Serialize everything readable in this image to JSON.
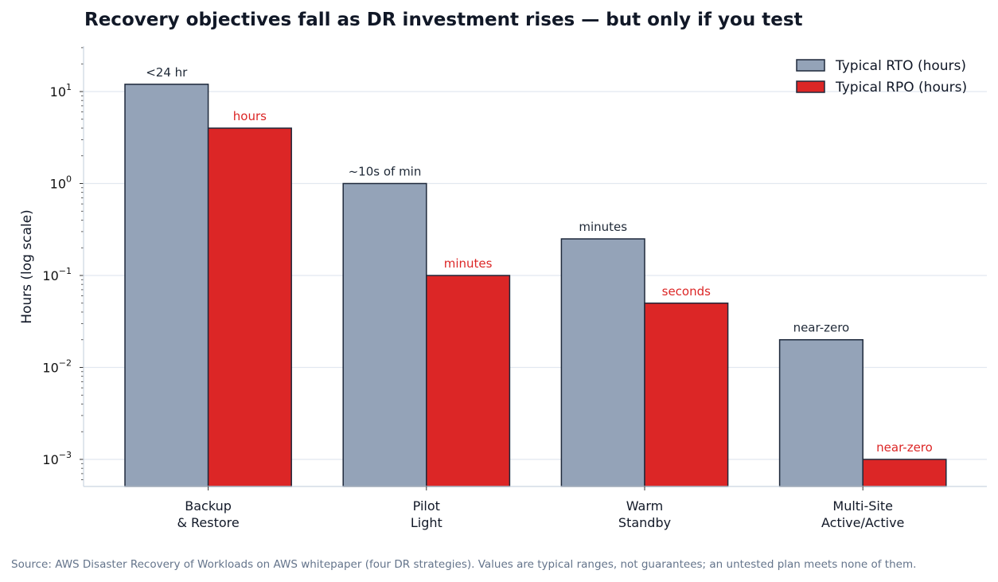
{
  "chart_data": {
    "type": "bar",
    "title": "Recovery objectives fall as DR investment rises — but only if you test",
    "ylabel": "Hours (log scale)",
    "yscale": "log",
    "ylim": [
      0.0005,
      30
    ],
    "yticks": [
      {
        "base": "10",
        "exp": "−3"
      },
      {
        "base": "10",
        "exp": "−2"
      },
      {
        "base": "10",
        "exp": "−1"
      },
      {
        "base": "10",
        "exp": "0"
      },
      {
        "base": "10",
        "exp": "1"
      }
    ],
    "grid": "horizontal",
    "legend_position": "top-right",
    "categories": [
      [
        "Backup",
        "& Restore"
      ],
      [
        "Pilot",
        "Light"
      ],
      [
        "Warm",
        "Standby"
      ],
      [
        "Multi-Site",
        "Active/Active"
      ]
    ],
    "series": [
      {
        "name": "Typical RTO (hours)",
        "color": "#94a3b8",
        "label_color": "#1f2937",
        "values": [
          12,
          1,
          0.25,
          0.02
        ],
        "labels": [
          "<24 hr",
          "~10s of min",
          "minutes",
          "near-zero"
        ]
      },
      {
        "name": "Typical RPO (hours)",
        "color": "#dc2626",
        "label_color": "#dc2626",
        "values": [
          4,
          0.1,
          0.05,
          0.001
        ],
        "labels": [
          "hours",
          "minutes",
          "seconds",
          "near-zero"
        ]
      }
    ],
    "source": "Source: AWS Disaster Recovery of Workloads on AWS whitepaper (four DR strategies). Values are typical ranges, not guarantees; an untested plan meets none of them."
  }
}
